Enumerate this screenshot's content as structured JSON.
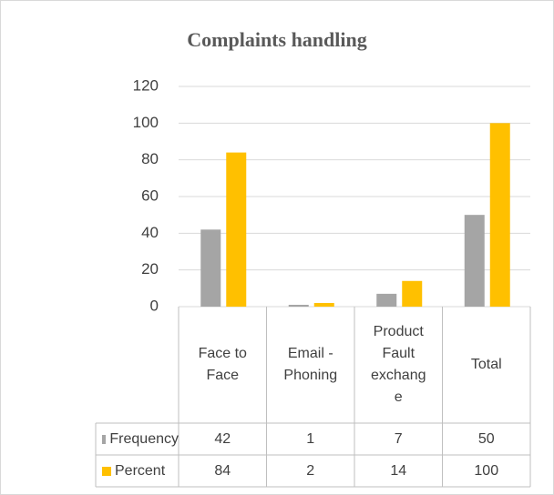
{
  "chart_data": {
    "type": "bar",
    "title": "Complaints handling",
    "categories": [
      "Face to Face",
      "Email - Phoning",
      "Product Fault exchange",
      "Total"
    ],
    "series": [
      {
        "name": "Frequency",
        "color": "#a5a5a5",
        "values": [
          42,
          1,
          7,
          50
        ]
      },
      {
        "name": "Percent",
        "color": "#ffc000",
        "values": [
          84,
          2,
          14,
          100
        ]
      }
    ],
    "ylim": [
      0,
      120
    ],
    "yticks": [
      0,
      20,
      40,
      60,
      80,
      100,
      120
    ],
    "grid": true,
    "data_table": true
  }
}
